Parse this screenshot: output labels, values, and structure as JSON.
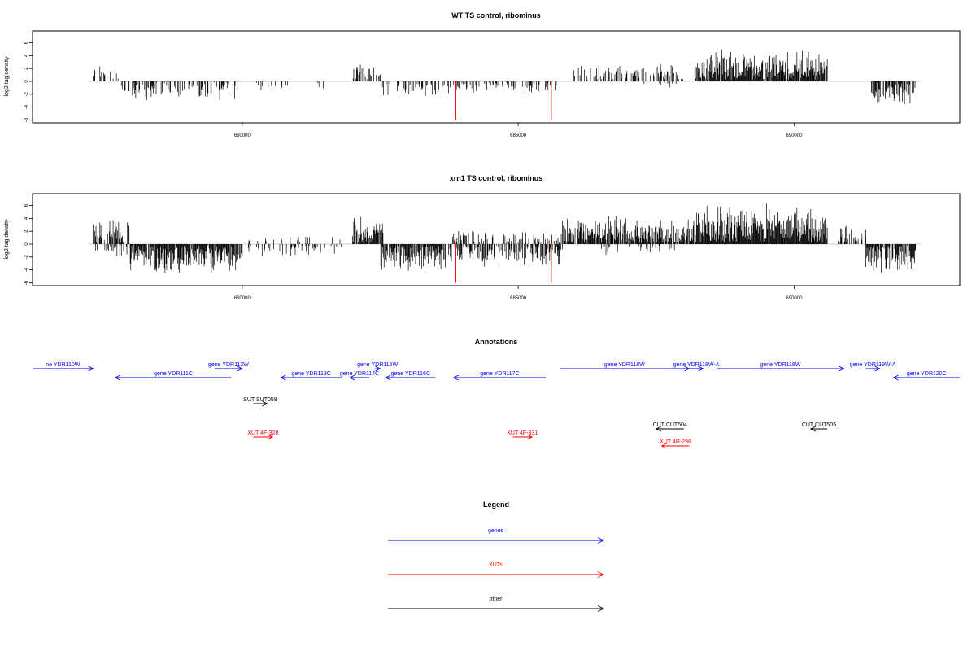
{
  "colors": {
    "gene": "#0000ff",
    "xut": "#ff0000",
    "other": "#000000",
    "marker": "#ff0000",
    "bar": "#000000"
  },
  "chart_data": [
    {
      "type": "bar",
      "title": "WT TS control, ribominus",
      "ylabel": "log2 tag density",
      "xlim": [
        676200,
        693000
      ],
      "ylim": [
        -6,
        7
      ],
      "yticks": [
        -6,
        -4,
        -2,
        0,
        2,
        4,
        6
      ],
      "xticks": [
        680000,
        685000,
        690000
      ],
      "markers": [
        683870,
        685600
      ],
      "seed": 11,
      "segments": [
        {
          "from": 677300,
          "to": 677750,
          "sign": 1,
          "amp": 3.5,
          "density": 0.25
        },
        {
          "from": 677800,
          "to": 679950,
          "sign": -1,
          "amp": 3.2,
          "density": 0.45
        },
        {
          "from": 680100,
          "to": 681600,
          "sign": -1,
          "amp": 1.4,
          "density": 0.12
        },
        {
          "from": 682000,
          "to": 682500,
          "sign": 1,
          "amp": 3.2,
          "density": 0.5
        },
        {
          "from": 682500,
          "to": 683500,
          "sign": -1,
          "amp": 3.0,
          "density": 0.4
        },
        {
          "from": 683500,
          "to": 685700,
          "sign": -1,
          "amp": 2.2,
          "density": 0.35
        },
        {
          "from": 685950,
          "to": 688000,
          "sign": 1,
          "amp": 3.0,
          "density": 0.4
        },
        {
          "from": 686900,
          "to": 687900,
          "sign": -1,
          "amp": 1.2,
          "density": 0.12
        },
        {
          "from": 688200,
          "to": 690600,
          "sign": 1,
          "amp": 5.0,
          "density": 0.95
        },
        {
          "from": 691400,
          "to": 692200,
          "sign": -1,
          "amp": 3.8,
          "density": 0.7
        }
      ]
    },
    {
      "type": "bar",
      "title": "xrn1 TS control, ribominus",
      "ylabel": "log2 tag density",
      "xlim": [
        676200,
        693000
      ],
      "ylim": [
        -6,
        7
      ],
      "yticks": [
        -6,
        -4,
        -2,
        0,
        2,
        4,
        6
      ],
      "xticks": [
        680000,
        685000,
        690000
      ],
      "markers": [
        683870,
        685600
      ],
      "seed": 29,
      "segments": [
        {
          "from": 677300,
          "to": 677950,
          "sign": 1,
          "amp": 4.0,
          "density": 0.7
        },
        {
          "from": 677300,
          "to": 677950,
          "sign": -1,
          "amp": 2.0,
          "density": 0.3
        },
        {
          "from": 677950,
          "to": 680000,
          "sign": -1,
          "amp": 5.0,
          "density": 0.9
        },
        {
          "from": 680100,
          "to": 681800,
          "sign": -1,
          "amp": 2.2,
          "density": 0.2
        },
        {
          "from": 680100,
          "to": 681800,
          "sign": 1,
          "amp": 1.5,
          "density": 0.1
        },
        {
          "from": 682000,
          "to": 682550,
          "sign": 1,
          "amp": 4.5,
          "density": 0.9
        },
        {
          "from": 682500,
          "to": 683600,
          "sign": -1,
          "amp": 5.0,
          "density": 0.85
        },
        {
          "from": 683600,
          "to": 685800,
          "sign": -1,
          "amp": 4.0,
          "density": 0.6
        },
        {
          "from": 683800,
          "to": 685800,
          "sign": 1,
          "amp": 2.5,
          "density": 0.35
        },
        {
          "from": 685800,
          "to": 688200,
          "sign": 1,
          "amp": 4.5,
          "density": 0.85
        },
        {
          "from": 686500,
          "to": 688000,
          "sign": -1,
          "amp": 2.0,
          "density": 0.15
        },
        {
          "from": 688200,
          "to": 690600,
          "sign": 1,
          "amp": 6.5,
          "density": 1.0
        },
        {
          "from": 690800,
          "to": 691300,
          "sign": 1,
          "amp": 3.0,
          "density": 0.5
        },
        {
          "from": 691300,
          "to": 692200,
          "sign": -1,
          "amp": 5.0,
          "density": 0.85
        }
      ]
    }
  ],
  "annotations": {
    "title": "Annotations",
    "xlim": [
      676200,
      693000
    ],
    "features": [
      {
        "label": "ne YDR110W",
        "type": "gene",
        "dir": "right",
        "start": 676200,
        "end": 677300,
        "row": 0
      },
      {
        "label": "gene YDR111C",
        "type": "gene",
        "dir": "left",
        "start": 677700,
        "end": 679800,
        "row": 1
      },
      {
        "label": "gene YDR112W",
        "type": "gene",
        "dir": "right",
        "start": 679500,
        "end": 680000,
        "row": 0
      },
      {
        "label": "gene YDR113C",
        "type": "gene",
        "dir": "left",
        "start": 680700,
        "end": 681800,
        "row": 1
      },
      {
        "label": "gene YDR114C",
        "type": "gene",
        "dir": "left",
        "start": 681950,
        "end": 682300,
        "row": 1
      },
      {
        "label": "gene YDR115W",
        "type": "gene",
        "dir": "right",
        "start": 682400,
        "end": 682500,
        "row": 0
      },
      {
        "label": "gene YDR116C",
        "type": "gene",
        "dir": "left",
        "start": 682600,
        "end": 683500,
        "row": 1
      },
      {
        "label": "gene YDR117C",
        "type": "gene",
        "dir": "left",
        "start": 683830,
        "end": 685500,
        "row": 1
      },
      {
        "label": "gene YDR118W",
        "type": "gene",
        "dir": "right",
        "start": 685750,
        "end": 688100,
        "row": 0
      },
      {
        "label": "gene YDR118W-A",
        "type": "gene",
        "dir": "right",
        "start": 688100,
        "end": 688350,
        "row": 0
      },
      {
        "label": "gene YDR119W",
        "type": "gene",
        "dir": "right",
        "start": 688600,
        "end": 690900,
        "row": 0
      },
      {
        "label": "gene YDR119W-A",
        "type": "gene",
        "dir": "right",
        "start": 691300,
        "end": 691550,
        "row": 0
      },
      {
        "label": "gene YDR120C",
        "type": "gene",
        "dir": "left",
        "start": 691800,
        "end": 693000,
        "row": 1
      },
      {
        "label": "SUT SUT058",
        "type": "other",
        "dir": "right",
        "start": 680200,
        "end": 680450,
        "row": 2
      },
      {
        "label": "CUT CUT504",
        "type": "other",
        "dir": "left",
        "start": 687500,
        "end": 688000,
        "row": 3
      },
      {
        "label": "CUT CUT505",
        "type": "other",
        "dir": "left",
        "start": 690300,
        "end": 690600,
        "row": 3
      },
      {
        "label": "XUT 4F-328",
        "type": "xut",
        "dir": "right",
        "start": 680200,
        "end": 680550,
        "row": 4
      },
      {
        "label": "XUT 4F-331",
        "type": "xut",
        "dir": "right",
        "start": 684900,
        "end": 685250,
        "row": 4
      },
      {
        "label": "XUT 4R-298",
        "type": "xut",
        "dir": "left",
        "start": 687600,
        "end": 688100,
        "row": 5
      }
    ]
  },
  "legend": {
    "title": "Legend",
    "items": [
      {
        "label": "genes",
        "type": "gene"
      },
      {
        "label": "XUTs",
        "type": "xut"
      },
      {
        "label": "other",
        "type": "other"
      }
    ]
  }
}
